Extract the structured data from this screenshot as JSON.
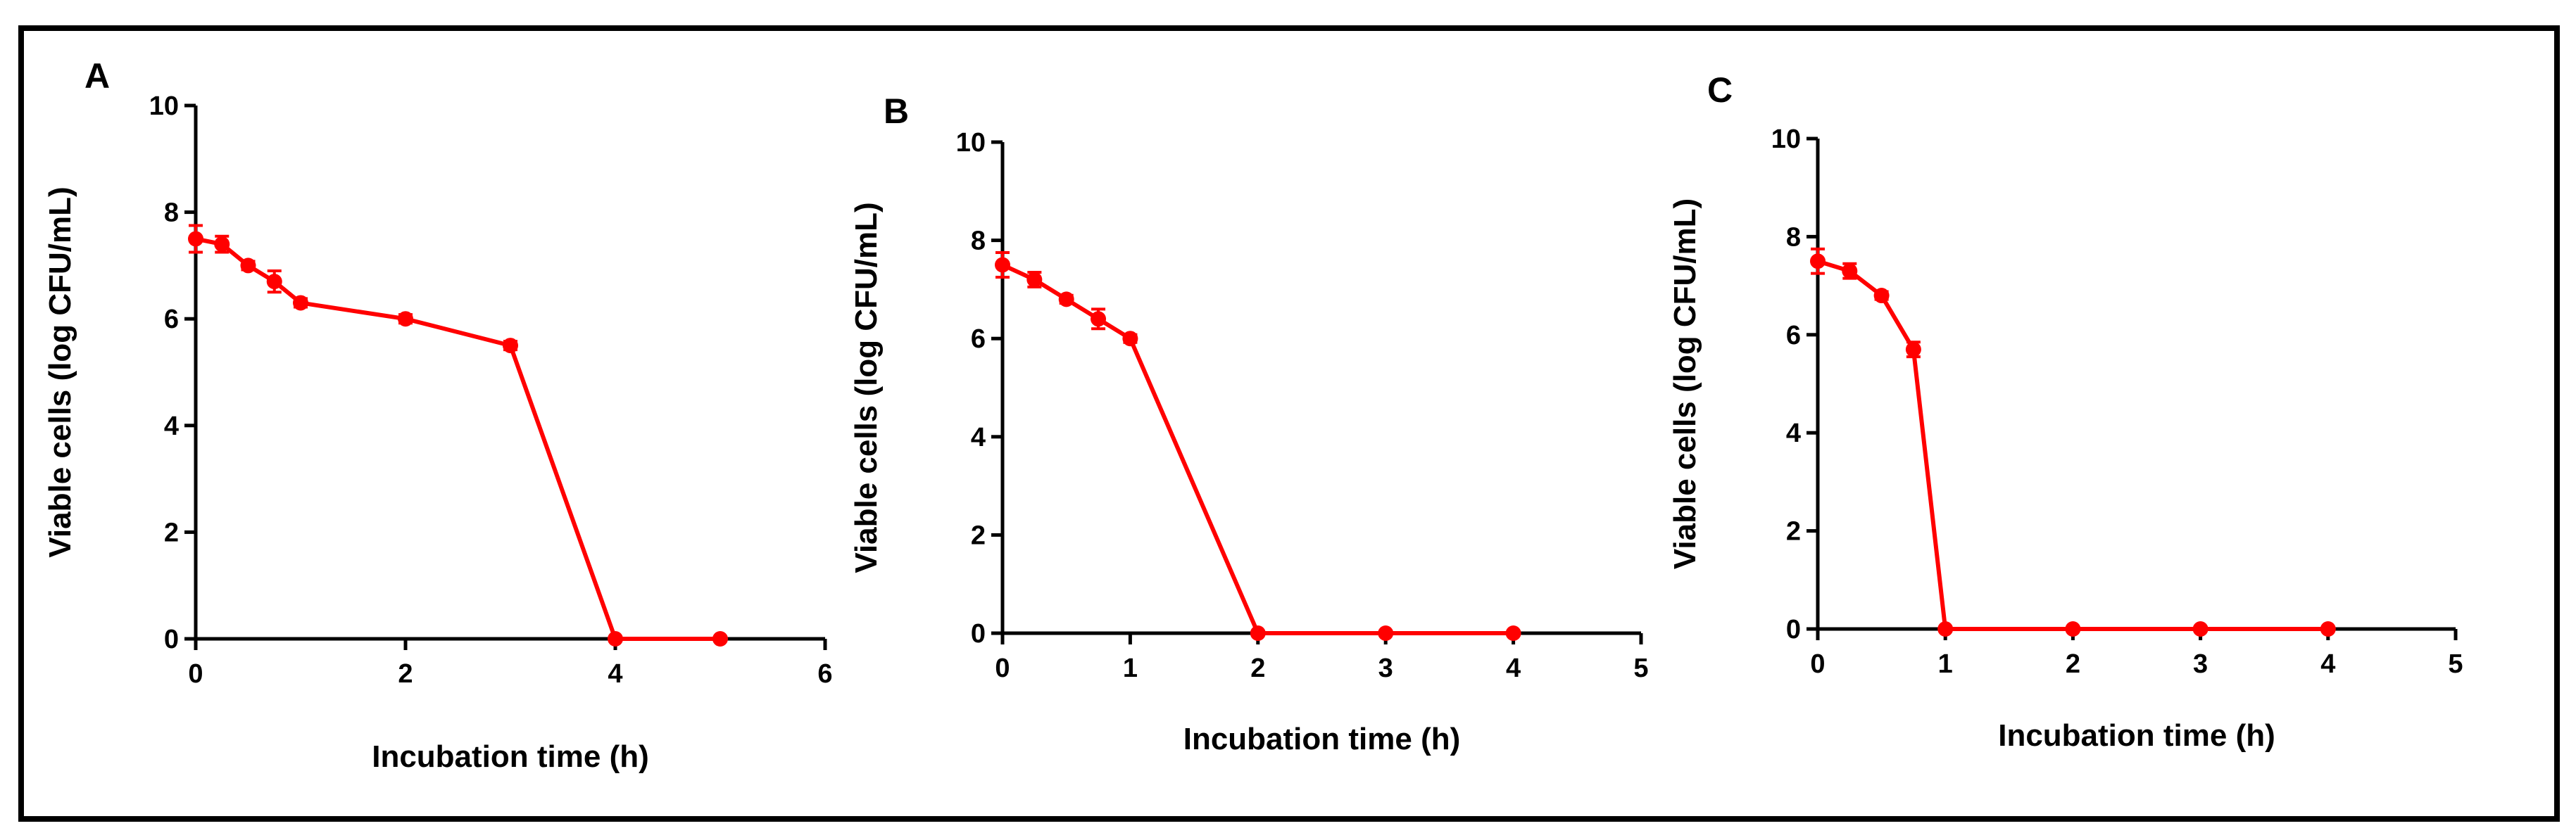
{
  "colors": {
    "series": "#ff0000",
    "axes": "#000000",
    "frame": "#000000",
    "background": "#ffffff"
  },
  "chart_data": [
    {
      "panel": "A",
      "type": "line",
      "xlabel": "Incubation time (h)",
      "ylabel": "Viable cells (log CFU/mL)",
      "xlim": [
        0,
        6
      ],
      "ylim": [
        0,
        10
      ],
      "xticks": [
        0,
        2,
        4,
        6
      ],
      "yticks": [
        0,
        2,
        4,
        6,
        8,
        10
      ],
      "series": [
        {
          "name": "A",
          "x": [
            0,
            0.25,
            0.5,
            0.75,
            1,
            2,
            3,
            4,
            5
          ],
          "y": [
            7.5,
            7.4,
            7.0,
            6.7,
            6.3,
            6.0,
            5.5,
            0,
            0
          ],
          "err": [
            0.25,
            0.15,
            0.08,
            0.2,
            0.08,
            0.08,
            0.08,
            0,
            0
          ]
        }
      ]
    },
    {
      "panel": "B",
      "type": "line",
      "xlabel": "Incubation time (h)",
      "ylabel": "Viable cells (log CFU/mL)",
      "xlim": [
        0,
        5
      ],
      "ylim": [
        0,
        10
      ],
      "xticks": [
        0,
        1,
        2,
        3,
        4,
        5
      ],
      "yticks": [
        0,
        2,
        4,
        6,
        8,
        10
      ],
      "series": [
        {
          "name": "B",
          "x": [
            0,
            0.25,
            0.5,
            0.75,
            1,
            2,
            3,
            4
          ],
          "y": [
            7.5,
            7.2,
            6.8,
            6.4,
            6.0,
            0,
            0,
            0
          ],
          "err": [
            0.25,
            0.15,
            0.08,
            0.2,
            0.08,
            0,
            0,
            0
          ]
        }
      ]
    },
    {
      "panel": "C",
      "type": "line",
      "xlabel": "Incubation time (h)",
      "ylabel": "Viable cells (log CFU/mL)",
      "xlim": [
        0,
        5
      ],
      "ylim": [
        0,
        10
      ],
      "xticks": [
        0,
        1,
        2,
        3,
        4,
        5
      ],
      "yticks": [
        0,
        2,
        4,
        6,
        8,
        10
      ],
      "series": [
        {
          "name": "C",
          "x": [
            0,
            0.25,
            0.5,
            0.75,
            1,
            2,
            3,
            4
          ],
          "y": [
            7.5,
            7.3,
            6.8,
            5.7,
            0,
            0,
            0,
            0
          ],
          "err": [
            0.25,
            0.15,
            0.08,
            0.15,
            0,
            0,
            0,
            0
          ]
        }
      ]
    }
  ]
}
